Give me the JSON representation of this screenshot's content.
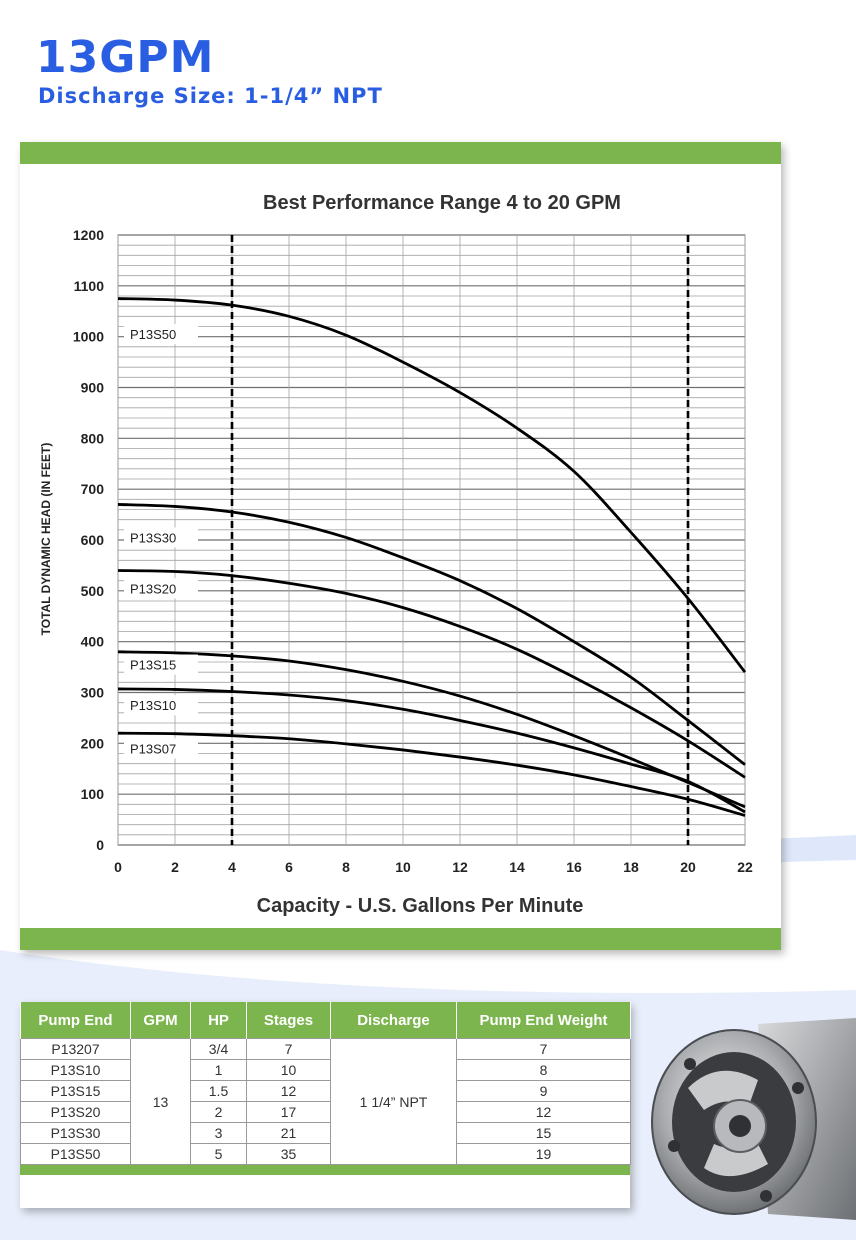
{
  "header": {
    "title": "13GPM",
    "subtitle": "Discharge Size: 1-1/4” NPT"
  },
  "colors": {
    "brand_blue": "#2a5ee2",
    "green_band": "#7cb54e",
    "curve": "#000000"
  },
  "chart_data": {
    "type": "line",
    "title": "Best Performance Range 4 to 20 GPM",
    "xlabel": "Capacity - U.S. Gallons Per Minute",
    "ylabel": "TOTAL DYNAMIC HEAD (IN FEET)",
    "xlim": [
      0,
      22
    ],
    "ylim": [
      0,
      1200
    ],
    "xticks": [
      0,
      2,
      4,
      6,
      8,
      10,
      12,
      14,
      16,
      18,
      20,
      22
    ],
    "yticks": [
      0,
      100,
      200,
      300,
      400,
      500,
      600,
      700,
      800,
      900,
      1000,
      1100,
      1200
    ],
    "grid": true,
    "best_range_lines": [
      4,
      20
    ],
    "series": [
      {
        "name": "P13S50",
        "x": [
          0,
          2,
          4,
          6,
          8,
          10,
          12,
          14,
          16,
          18,
          20,
          22
        ],
        "y": [
          1075,
          1072,
          1062,
          1040,
          1003,
          950,
          890,
          820,
          735,
          615,
          485,
          340
        ]
      },
      {
        "name": "P13S30",
        "x": [
          0,
          2,
          4,
          6,
          8,
          10,
          12,
          14,
          16,
          18,
          20,
          22
        ],
        "y": [
          670,
          666,
          655,
          635,
          605,
          565,
          520,
          465,
          400,
          330,
          245,
          158
        ]
      },
      {
        "name": "P13S20",
        "x": [
          0,
          2,
          4,
          6,
          8,
          10,
          12,
          14,
          16,
          18,
          20,
          22
        ],
        "y": [
          540,
          538,
          530,
          515,
          495,
          467,
          430,
          385,
          330,
          270,
          205,
          133
        ]
      },
      {
        "name": "P13S15",
        "x": [
          0,
          2,
          4,
          6,
          8,
          10,
          12,
          14,
          16,
          18,
          20,
          22
        ],
        "y": [
          380,
          378,
          372,
          362,
          345,
          322,
          293,
          257,
          215,
          170,
          123,
          75
        ]
      },
      {
        "name": "P13S10",
        "x": [
          0,
          2,
          4,
          6,
          8,
          10,
          12,
          14,
          16,
          18,
          20,
          22
        ],
        "y": [
          307,
          306,
          302,
          295,
          284,
          267,
          245,
          220,
          191,
          159,
          125,
          65
        ]
      },
      {
        "name": "P13S07",
        "x": [
          0,
          2,
          4,
          6,
          8,
          10,
          12,
          14,
          16,
          18,
          20,
          22
        ],
        "y": [
          220,
          219,
          215,
          209,
          199,
          187,
          173,
          157,
          138,
          115,
          90,
          58
        ]
      }
    ]
  },
  "spec_table": {
    "headers": [
      "Pump End",
      "GPM",
      "HP",
      "Stages",
      "Discharge",
      "Pump End Weight"
    ],
    "gpm": "13",
    "discharge": "1 1/4” NPT",
    "rows": [
      {
        "pump_end": "P13207",
        "hp": "3/4",
        "stages": "7",
        "weight": "7"
      },
      {
        "pump_end": "P13S10",
        "hp": "1",
        "stages": "10",
        "weight": "8"
      },
      {
        "pump_end": "P13S15",
        "hp": "1.5",
        "stages": "12",
        "weight": "9"
      },
      {
        "pump_end": "P13S20",
        "hp": "2",
        "stages": "17",
        "weight": "12"
      },
      {
        "pump_end": "P13S30",
        "hp": "3",
        "stages": "21",
        "weight": "15"
      },
      {
        "pump_end": "P13S50",
        "hp": "5",
        "stages": "35",
        "weight": "19"
      }
    ]
  }
}
